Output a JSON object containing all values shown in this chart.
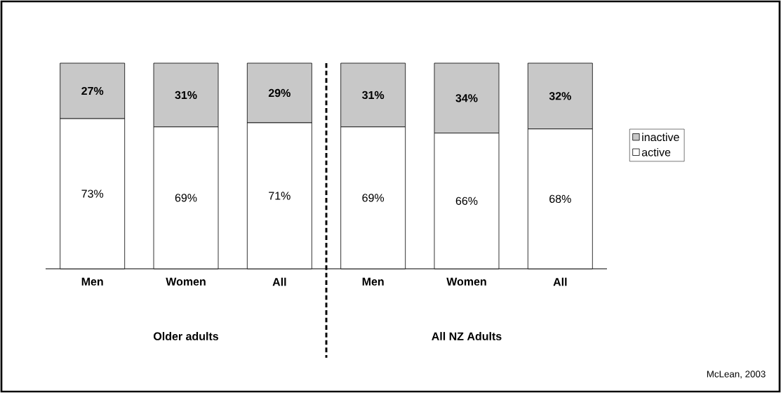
{
  "chart_data": {
    "type": "bar",
    "stacked": true,
    "categories": [
      "Men",
      "Women",
      "All",
      "Men",
      "Women",
      "All"
    ],
    "series": [
      {
        "name": "active",
        "color": "#ffffff",
        "values": [
          73,
          69,
          71,
          69,
          66,
          68
        ],
        "value_labels": [
          "73%",
          "69%",
          "71%",
          "69%",
          "66%",
          "68%"
        ]
      },
      {
        "name": "inactive",
        "color": "#c8c8c8",
        "values": [
          27,
          31,
          29,
          31,
          34,
          32
        ],
        "value_labels": [
          "27%",
          "31%",
          "29%",
          "31%",
          "34%",
          "32%"
        ]
      }
    ],
    "tick_labels": "x",
    "legend": "right",
    "annotations": [
      "Older adults",
      "All NZ Adults",
      "McLean, 2003"
    ]
  }
}
